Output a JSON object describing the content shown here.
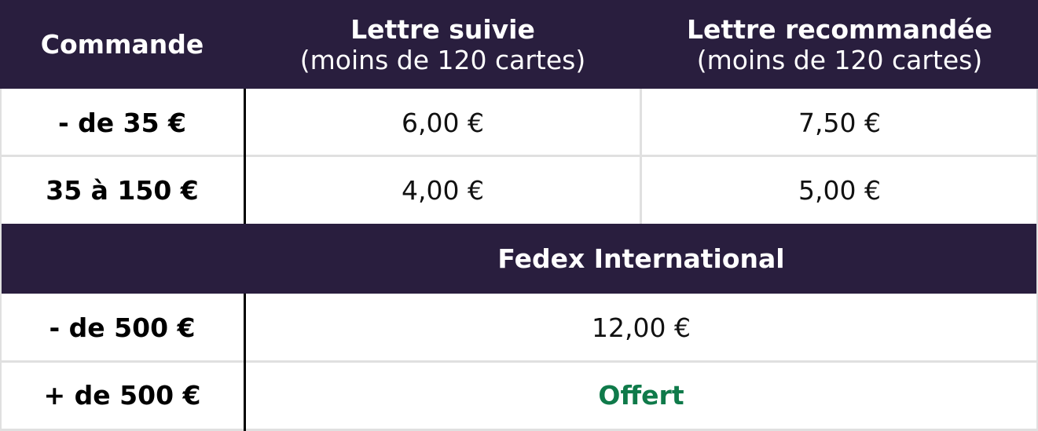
{
  "header": {
    "col1": "Commande",
    "col2_title": "Lettre suivie",
    "col2_sub": "(moins de 120 cartes)",
    "col3_title": "Lettre recommandée",
    "col3_sub": "(moins de 120 cartes)"
  },
  "domestic_rows": [
    {
      "label": "- de 35 €",
      "suivie": "6,00 €",
      "recommandee": "7,50 €"
    },
    {
      "label": "35 à 150 €",
      "suivie": "4,00 €",
      "recommandee": "5,00 €"
    }
  ],
  "international": {
    "title": "Fedex International",
    "rows": [
      {
        "label": "- de 500 €",
        "value": "12,00 €"
      },
      {
        "label": "+ de 500 €",
        "value": "Offert"
      }
    ]
  },
  "colors": {
    "header_bg": "#291e3e",
    "offert": "#0f7a4a"
  }
}
